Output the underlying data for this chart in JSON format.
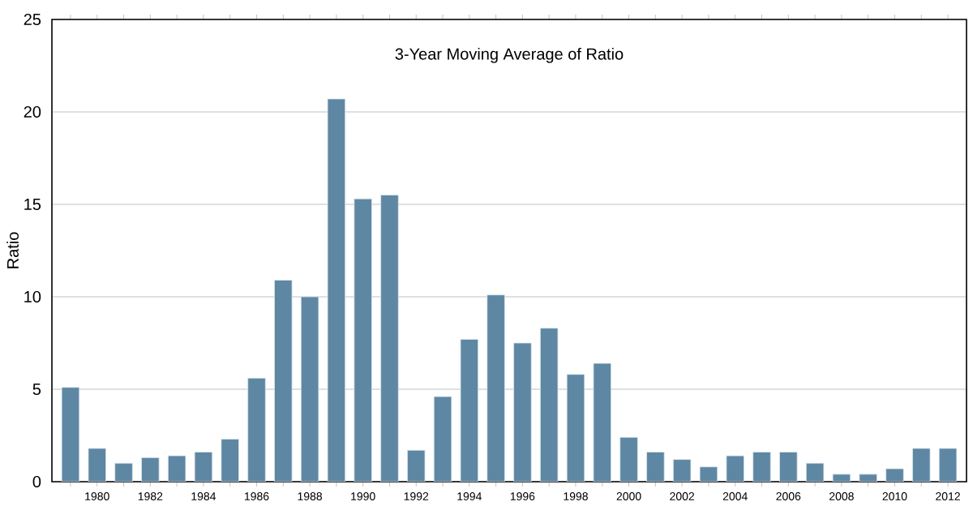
{
  "chart_data": {
    "type": "bar",
    "title": "3-Year Moving Average of Ratio",
    "ylabel": "Ratio",
    "categories": [
      null,
      "1980",
      null,
      "1982",
      null,
      "1984",
      null,
      "1986",
      null,
      "1988",
      null,
      "1990",
      null,
      "1992",
      null,
      "1994",
      null,
      "1996",
      null,
      "1998",
      null,
      "2000",
      null,
      "2002",
      null,
      "2004",
      null,
      "2006",
      null,
      "2008",
      null,
      "2010",
      null,
      "2012"
    ],
    "values": [
      5.1,
      1.8,
      1.0,
      1.3,
      1.4,
      1.6,
      2.3,
      5.6,
      10.9,
      10.0,
      20.7,
      15.3,
      15.5,
      1.7,
      4.6,
      7.7,
      10.1,
      7.5,
      8.3,
      5.8,
      6.4,
      2.4,
      1.6,
      1.2,
      0.8,
      1.4,
      1.6,
      1.6,
      1.0,
      0.4,
      0.4,
      0.7,
      1.8,
      1.8
    ],
    "color": "#5e87a3",
    "ylim": [
      0,
      25
    ],
    "yticks": [
      0,
      5,
      10,
      15,
      20,
      25
    ],
    "grid": "y"
  }
}
